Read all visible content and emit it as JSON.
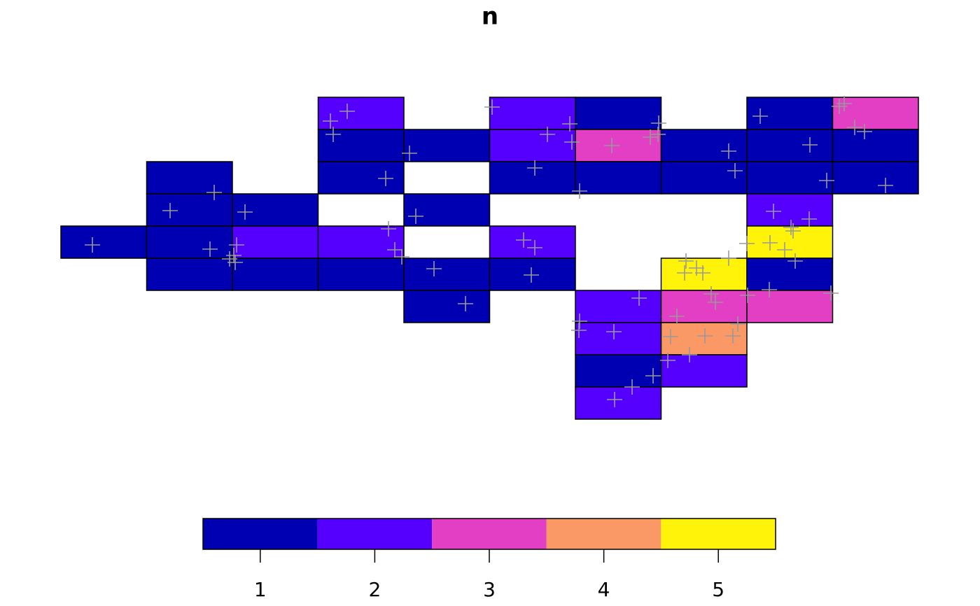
{
  "chart_data": {
    "type": "grid-map",
    "title": "n",
    "cells": [
      [
        367.5,
        0,
        2
      ],
      [
        612.5,
        0,
        2
      ],
      [
        735,
        0,
        1
      ],
      [
        980,
        0,
        1
      ],
      [
        1102.5,
        0,
        3
      ],
      [
        367.5,
        46,
        1
      ],
      [
        490,
        46,
        1
      ],
      [
        612.5,
        46,
        2
      ],
      [
        735,
        46,
        3
      ],
      [
        857.5,
        46,
        1
      ],
      [
        980,
        46,
        1
      ],
      [
        1102.5,
        46,
        1
      ],
      [
        122.5,
        92,
        1
      ],
      [
        367.5,
        92,
        1
      ],
      [
        612.5,
        92,
        1
      ],
      [
        735,
        92,
        1
      ],
      [
        857.5,
        92,
        1
      ],
      [
        980,
        92,
        1
      ],
      [
        1102.5,
        92,
        1
      ],
      [
        122.5,
        138,
        1
      ],
      [
        245,
        138,
        1
      ],
      [
        490,
        138,
        1
      ],
      [
        980,
        138,
        2
      ],
      [
        0,
        184,
        1
      ],
      [
        122.5,
        184,
        1
      ],
      [
        245,
        184,
        2
      ],
      [
        367.5,
        184,
        2
      ],
      [
        612.5,
        184,
        2
      ],
      [
        980,
        184,
        5
      ],
      [
        122.5,
        230,
        1
      ],
      [
        245,
        230,
        1
      ],
      [
        367.5,
        230,
        1
      ],
      [
        490,
        230,
        1
      ],
      [
        612.5,
        230,
        1
      ],
      [
        857.5,
        230,
        5
      ],
      [
        980,
        230,
        1
      ],
      [
        490,
        276,
        1
      ],
      [
        735,
        276,
        2
      ],
      [
        857.5,
        276,
        3
      ],
      [
        980,
        276,
        3
      ],
      [
        735,
        322,
        2
      ],
      [
        857.5,
        322,
        4
      ],
      [
        735,
        368,
        1
      ],
      [
        857.5,
        368,
        2
      ],
      [
        735,
        414,
        2
      ]
    ],
    "points": {
      "x": [
        385,
        409,
        389,
        616,
        727,
        695,
        730,
        787,
        842,
        854,
        853,
        999,
        1112,
        1119,
        1134,
        1148,
        1070,
        954,
        498,
        464,
        677,
        741,
        963,
        1094,
        1178,
        219,
        156,
        263,
        507,
        468,
        1018,
        1069,
        1043,
        1046,
        45,
        213,
        251,
        247,
        241,
        249,
        477,
        487,
        661,
        677,
        980,
        1013,
        1034,
        1049,
        533,
        672,
        893,
        891,
        917,
        954,
        908,
        1012,
        1100,
        981,
        826,
        929,
        935,
        880,
        741,
        740,
        790,
        967,
        960,
        871,
        920,
        867,
        898,
        846,
        816,
        791,
        578
      ],
      "y": [
        34,
        20,
        53,
        14,
        38,
        53,
        64,
        69,
        57,
        37,
        53,
        27,
        13,
        9,
        43,
        49,
        68,
        77,
        80,
        116,
        101,
        134,
        105,
        119,
        126,
        136,
        162,
        164,
        170,
        188,
        163,
        174,
        186,
        191,
        211,
        217,
        211,
        226,
        231,
        236,
        218,
        228,
        204,
        215,
        209,
        208,
        218,
        234,
        245,
        254,
        234,
        251,
        251,
        230,
        244,
        275,
        280,
        283,
        287,
        281,
        293,
        313,
        320,
        333,
        335,
        324,
        341,
        342,
        341,
        376,
        368,
        398,
        414,
        432,
        295
      ],
      "color": "#999999"
    },
    "palette": [
      "#0000B3",
      "#5500FF",
      "#E33FC4",
      "#FA9966",
      "#FFF30A"
    ],
    "legend_lim": [
      0.5,
      5.5
    ],
    "legend_ticks": [
      1,
      2,
      3,
      4,
      5
    ]
  }
}
